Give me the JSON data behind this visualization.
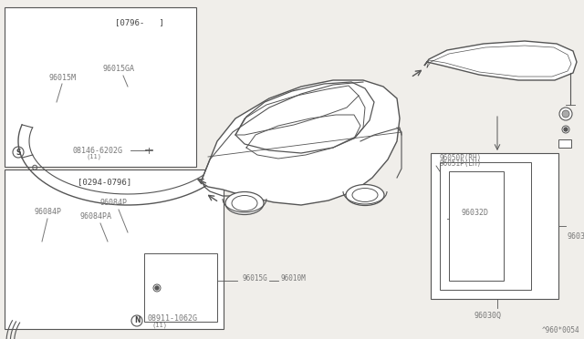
{
  "bg_color": "#f0eeea",
  "line_color": "#555555",
  "text_color": "#777777",
  "dark_text": "#444444",
  "title_note": "^960*0054",
  "box1_label": "[0796-   ]",
  "box2_label": "[0294-0796]",
  "fig_width": 6.4,
  "fig_height": 3.72,
  "dpi": 100
}
